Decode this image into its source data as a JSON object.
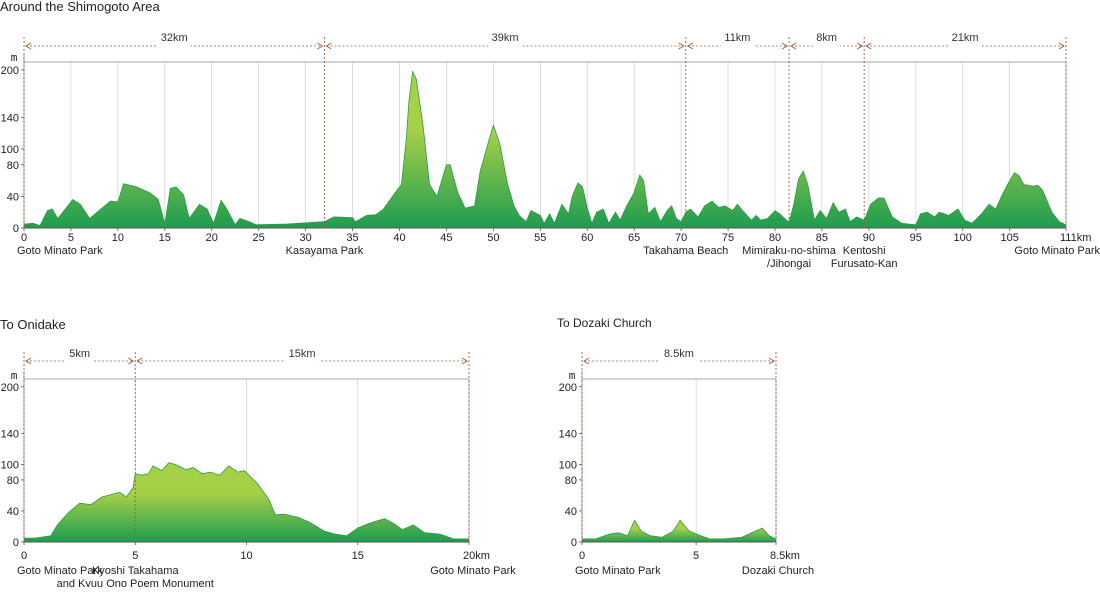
{
  "chart_data": [
    {
      "type": "area",
      "title": "Around the Shimogoto Area",
      "ylabel": "m",
      "xunit": "km",
      "ylim": [
        0,
        210
      ],
      "xlim": [
        0,
        111
      ],
      "yticks": [
        0,
        40,
        80,
        100,
        140,
        200
      ],
      "xticks": [
        0,
        5,
        10,
        15,
        20,
        25,
        30,
        35,
        40,
        45,
        50,
        55,
        60,
        65,
        70,
        75,
        80,
        85,
        90,
        95,
        100,
        105,
        111
      ],
      "xtick_labels": [
        "0",
        "5",
        "10",
        "15",
        "20",
        "25",
        "30",
        "35",
        "40",
        "45",
        "50",
        "55",
        "60",
        "65",
        "70",
        "75",
        "80",
        "85",
        "90",
        "95",
        "100",
        "105",
        "111km"
      ],
      "segments": [
        {
          "from": 0,
          "to": 32,
          "label": "32km"
        },
        {
          "from": 32,
          "to": 70.5,
          "label": "39km"
        },
        {
          "from": 70.5,
          "to": 81.5,
          "label": "11km"
        },
        {
          "from": 81.5,
          "to": 89.5,
          "label": "8km"
        },
        {
          "from": 89.5,
          "to": 111,
          "label": "21km"
        }
      ],
      "places": [
        {
          "x": 0,
          "lines": [
            "Goto Minato Park"
          ]
        },
        {
          "x": 32,
          "lines": [
            "Kasayama Park"
          ]
        },
        {
          "x": 70.5,
          "lines": [
            "Takahama Beach"
          ]
        },
        {
          "x": 81.5,
          "lines": [
            "Mimiraku-no-shima",
            "/Jihongai"
          ]
        },
        {
          "x": 89.5,
          "lines": [
            "Kentoshi",
            "Furusato-Kan"
          ]
        },
        {
          "x": 111,
          "lines": [
            "Goto Minato Park"
          ]
        }
      ],
      "points": [
        [
          0,
          5
        ],
        [
          1,
          6
        ],
        [
          1.7,
          3
        ],
        [
          2.5,
          22
        ],
        [
          3,
          24
        ],
        [
          3.6,
          12
        ],
        [
          5.2,
          36
        ],
        [
          6,
          30
        ],
        [
          7,
          12
        ],
        [
          8,
          22
        ],
        [
          9.2,
          34
        ],
        [
          10,
          33
        ],
        [
          10.6,
          56
        ],
        [
          12,
          52
        ],
        [
          13.5,
          44
        ],
        [
          14.3,
          36
        ],
        [
          15,
          6
        ],
        [
          15.6,
          50
        ],
        [
          16.2,
          52
        ],
        [
          17,
          42
        ],
        [
          17.6,
          12
        ],
        [
          18.7,
          30
        ],
        [
          19.5,
          24
        ],
        [
          20.2,
          6
        ],
        [
          21,
          35
        ],
        [
          21.6,
          24
        ],
        [
          22.5,
          4
        ],
        [
          23,
          12
        ],
        [
          24,
          8
        ],
        [
          24.7,
          4
        ],
        [
          28,
          5
        ],
        [
          32,
          8
        ],
        [
          33,
          14
        ],
        [
          35,
          13
        ],
        [
          35.3,
          8
        ],
        [
          36.5,
          16
        ],
        [
          37.5,
          17
        ],
        [
          38.3,
          24
        ],
        [
          39.5,
          44
        ],
        [
          40.2,
          55
        ],
        [
          40.7,
          110
        ],
        [
          41,
          160
        ],
        [
          41.4,
          198
        ],
        [
          41.8,
          188
        ],
        [
          42.5,
          130
        ],
        [
          43.2,
          55
        ],
        [
          44,
          40
        ],
        [
          45,
          80
        ],
        [
          45.4,
          80
        ],
        [
          46.2,
          45
        ],
        [
          47,
          25
        ],
        [
          48,
          28
        ],
        [
          48.6,
          72
        ],
        [
          49.5,
          110
        ],
        [
          50,
          130
        ],
        [
          50.7,
          106
        ],
        [
          51.5,
          56
        ],
        [
          52.2,
          28
        ],
        [
          52.8,
          15
        ],
        [
          53.5,
          8
        ],
        [
          54,
          22
        ],
        [
          55,
          16
        ],
        [
          55.4,
          6
        ],
        [
          56,
          18
        ],
        [
          56.5,
          6
        ],
        [
          57.3,
          30
        ],
        [
          58,
          18
        ],
        [
          58.4,
          40
        ],
        [
          59,
          57
        ],
        [
          59.5,
          52
        ],
        [
          60,
          26
        ],
        [
          60.5,
          6
        ],
        [
          61,
          20
        ],
        [
          61.7,
          24
        ],
        [
          62.3,
          6
        ],
        [
          63,
          20
        ],
        [
          63.5,
          10
        ],
        [
          64.2,
          28
        ],
        [
          65,
          45
        ],
        [
          65.6,
          67
        ],
        [
          66,
          60
        ],
        [
          66.5,
          18
        ],
        [
          67.2,
          26
        ],
        [
          67.8,
          8
        ],
        [
          68.5,
          22
        ],
        [
          69,
          28
        ],
        [
          69.5,
          12
        ],
        [
          70,
          8
        ],
        [
          70.5,
          20
        ],
        [
          71,
          24
        ],
        [
          71.8,
          14
        ],
        [
          72.5,
          28
        ],
        [
          73.3,
          34
        ],
        [
          74,
          26
        ],
        [
          74.7,
          28
        ],
        [
          75.5,
          22
        ],
        [
          76,
          30
        ],
        [
          76.7,
          20
        ],
        [
          77.5,
          10
        ],
        [
          78,
          16
        ],
        [
          78.5,
          10
        ],
        [
          79.2,
          12
        ],
        [
          80,
          22
        ],
        [
          80.5,
          18
        ],
        [
          81.2,
          10
        ],
        [
          81.5,
          8
        ],
        [
          82,
          30
        ],
        [
          82.5,
          62
        ],
        [
          83,
          72
        ],
        [
          83.5,
          55
        ],
        [
          84.2,
          10
        ],
        [
          84.8,
          22
        ],
        [
          85.5,
          12
        ],
        [
          86.2,
          32
        ],
        [
          86.8,
          20
        ],
        [
          87.5,
          24
        ],
        [
          88,
          8
        ],
        [
          88.7,
          14
        ],
        [
          89.5,
          10
        ],
        [
          90.2,
          30
        ],
        [
          91,
          38
        ],
        [
          91.6,
          38
        ],
        [
          92.5,
          14
        ],
        [
          93.5,
          6
        ],
        [
          95,
          4
        ],
        [
          95.5,
          18
        ],
        [
          96.2,
          20
        ],
        [
          97,
          14
        ],
        [
          97.5,
          20
        ],
        [
          98.5,
          16
        ],
        [
          99.5,
          24
        ],
        [
          100.2,
          10
        ],
        [
          101,
          6
        ],
        [
          102,
          18
        ],
        [
          102.8,
          30
        ],
        [
          103.5,
          24
        ],
        [
          104.2,
          42
        ],
        [
          105,
          60
        ],
        [
          105.5,
          70
        ],
        [
          106,
          66
        ],
        [
          106.5,
          55
        ],
        [
          107.5,
          53
        ],
        [
          108,
          54
        ],
        [
          108.5,
          48
        ],
        [
          109.5,
          20
        ],
        [
          110.3,
          8
        ],
        [
          111,
          4
        ]
      ]
    },
    {
      "type": "area",
      "title": "To Onidake",
      "ylabel": "m",
      "xunit": "km",
      "ylim": [
        0,
        210
      ],
      "xlim": [
        0,
        20
      ],
      "yticks": [
        0,
        40,
        80,
        100,
        140,
        200
      ],
      "xticks": [
        0,
        5,
        10,
        15,
        20
      ],
      "xtick_labels": [
        "0",
        "5",
        "10",
        "15",
        "20km"
      ],
      "segments": [
        {
          "from": 0,
          "to": 5,
          "label": "5km"
        },
        {
          "from": 5,
          "to": 20,
          "label": "15km"
        }
      ],
      "places": [
        {
          "x": 0,
          "lines": [
            "Goto Minato Park"
          ]
        },
        {
          "x": 5,
          "lines": [
            "Kyoshi Takahama",
            "and Kyuu Ono Poem Monument"
          ]
        },
        {
          "x": 20,
          "lines": [
            "Goto Minato Park"
          ]
        }
      ],
      "points": [
        [
          0,
          5
        ],
        [
          0.5,
          5
        ],
        [
          1.2,
          8
        ],
        [
          1.5,
          22
        ],
        [
          2,
          38
        ],
        [
          2.5,
          50
        ],
        [
          3,
          48
        ],
        [
          3.5,
          58
        ],
        [
          4.3,
          64
        ],
        [
          4.6,
          58
        ],
        [
          4.9,
          70
        ],
        [
          5,
          88
        ],
        [
          5.3,
          86
        ],
        [
          5.6,
          88
        ],
        [
          5.8,
          98
        ],
        [
          6.2,
          92
        ],
        [
          6.5,
          102
        ],
        [
          6.8,
          100
        ],
        [
          7.3,
          93
        ],
        [
          7.6,
          96
        ],
        [
          8,
          88
        ],
        [
          8.4,
          90
        ],
        [
          8.8,
          86
        ],
        [
          9.2,
          98
        ],
        [
          9.6,
          90
        ],
        [
          9.9,
          92
        ],
        [
          10.5,
          75
        ],
        [
          11,
          55
        ],
        [
          11.3,
          35
        ],
        [
          11.7,
          36
        ],
        [
          12.3,
          32
        ],
        [
          12.8,
          26
        ],
        [
          13.5,
          14
        ],
        [
          14,
          10
        ],
        [
          14.5,
          8
        ],
        [
          15,
          18
        ],
        [
          15.5,
          24
        ],
        [
          16.2,
          30
        ],
        [
          16.6,
          24
        ],
        [
          17,
          16
        ],
        [
          17.5,
          22
        ],
        [
          18,
          12
        ],
        [
          18.7,
          10
        ],
        [
          19.3,
          4
        ],
        [
          20,
          4
        ]
      ]
    },
    {
      "type": "area",
      "title": "To Dozaki Church",
      "ylabel": "m",
      "xunit": "km",
      "ylim": [
        0,
        210
      ],
      "xlim": [
        0,
        8.5
      ],
      "yticks": [
        0,
        40,
        80,
        100,
        140,
        200
      ],
      "xticks": [
        0,
        5,
        8.5
      ],
      "xtick_labels": [
        "0",
        "5",
        "8.5km"
      ],
      "segments": [
        {
          "from": 0,
          "to": 8.5,
          "label": "8.5km"
        }
      ],
      "places": [
        {
          "x": 0,
          "lines": [
            "Goto Minato Park"
          ]
        },
        {
          "x": 8.5,
          "lines": [
            "Dozaki Church"
          ]
        }
      ],
      "points": [
        [
          0,
          4
        ],
        [
          0.6,
          4
        ],
        [
          1.2,
          10
        ],
        [
          1.6,
          12
        ],
        [
          2,
          8
        ],
        [
          2.3,
          28
        ],
        [
          2.6,
          14
        ],
        [
          3,
          8
        ],
        [
          3.5,
          6
        ],
        [
          4,
          14
        ],
        [
          4.3,
          28
        ],
        [
          4.7,
          14
        ],
        [
          5.2,
          8
        ],
        [
          5.6,
          4
        ],
        [
          6.2,
          4
        ],
        [
          7,
          6
        ],
        [
          7.6,
          14
        ],
        [
          7.9,
          18
        ],
        [
          8.2,
          8
        ],
        [
          8.5,
          4
        ]
      ]
    }
  ],
  "colors": {
    "fill_top": "#a6d048",
    "fill_bottom": "#1e9c50",
    "stroke": "#2f9a48",
    "grid": "#c9c9c9",
    "frame": "#8a8a8a",
    "divider": "#a05c3c",
    "arrow": "#a05c3c"
  }
}
